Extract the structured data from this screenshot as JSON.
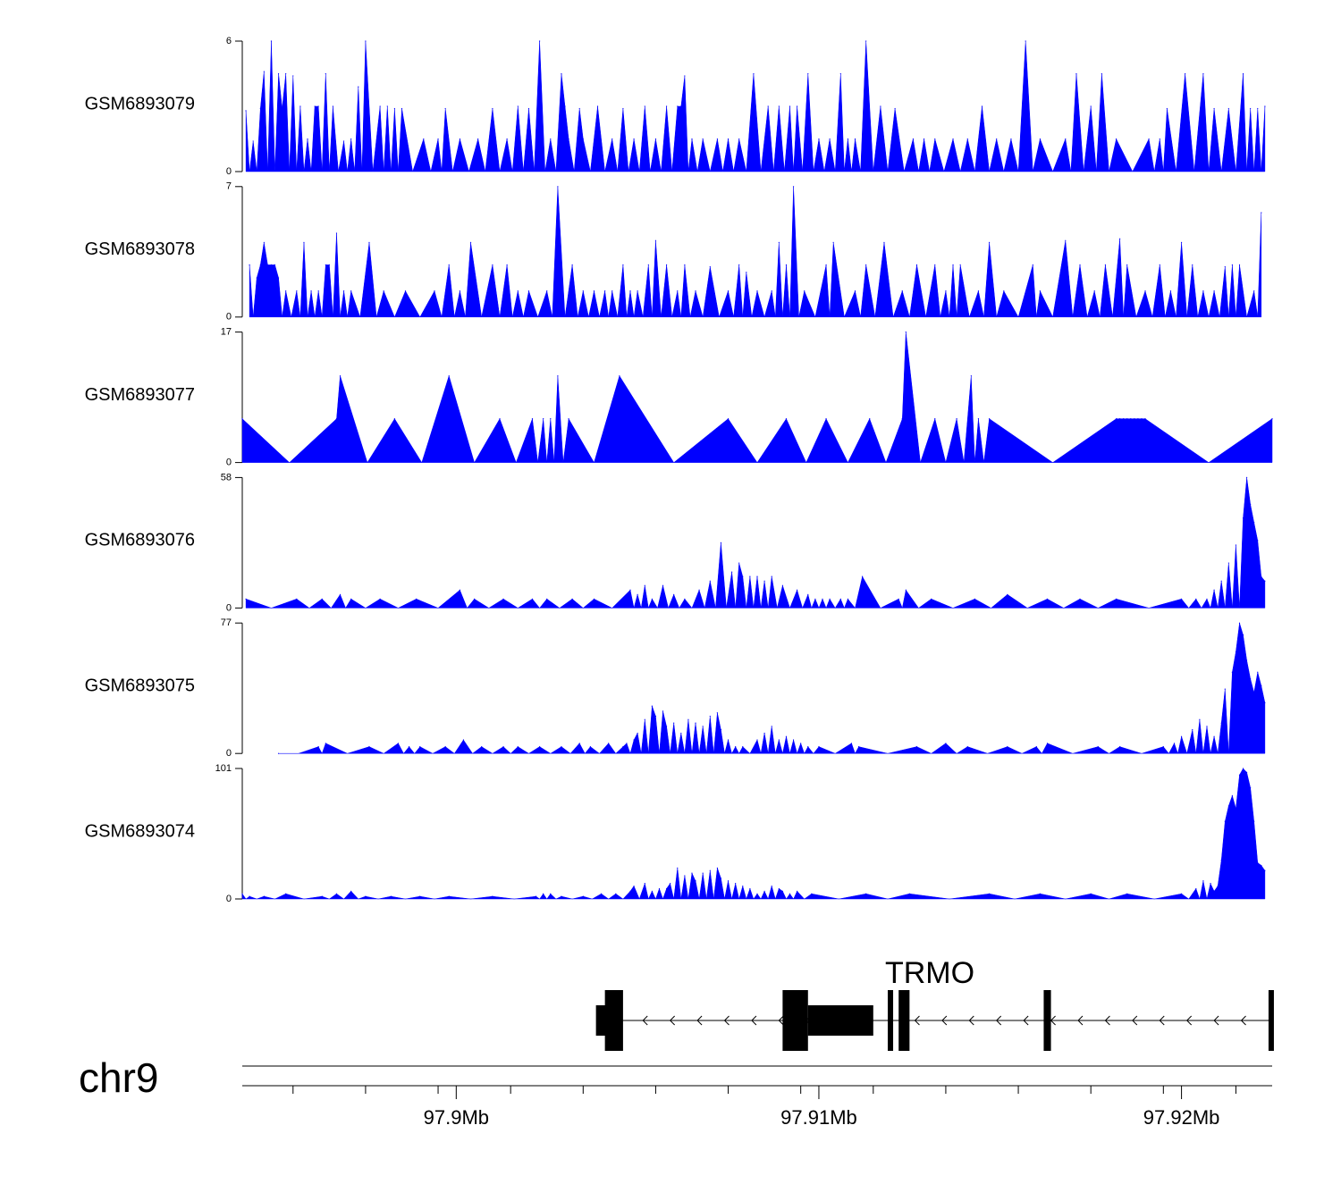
{
  "chart_data": {
    "type": "area",
    "chromosome": "chr9",
    "x_axis": {
      "unit": "Mb",
      "xlim": [
        97.8941,
        97.9225
      ],
      "major_ticks": [
        97.9,
        97.91,
        97.92
      ],
      "major_tick_labels": [
        "97.9Mb",
        "97.91Mb",
        "97.92Mb"
      ],
      "minor_ticks": [
        97.8955,
        97.8975,
        97.8995,
        97.9015,
        97.9035,
        97.9055,
        97.9075,
        97.9095,
        97.9115,
        97.9135,
        97.9155,
        97.9175,
        97.9195,
        97.9215
      ]
    },
    "series": [
      {
        "name": "GSM6893079",
        "ylim": [
          0,
          6
        ],
        "y_ticks": [
          0,
          6
        ],
        "y_tick_labels": [
          "0",
          "6"
        ],
        "color": "#0000ff",
        "x": [
          97.8942,
          97.8944,
          97.8946,
          97.8947,
          97.8949,
          97.8951,
          97.8952,
          97.8953,
          97.8955,
          97.8957,
          97.8959,
          97.8961,
          97.8962,
          97.8964,
          97.8966,
          97.8969,
          97.8971,
          97.8973,
          97.8975,
          97.8979,
          97.8981,
          97.8983,
          97.8985,
          97.8991,
          97.8995,
          97.8997,
          97.9001,
          97.9006,
          97.901,
          97.9014,
          97.9017,
          97.902,
          97.9023,
          97.9026,
          97.9029,
          97.903,
          97.9031,
          97.9034,
          97.9035,
          97.9039,
          97.9043,
          97.9046,
          97.9049,
          97.9052,
          97.9055,
          97.9058,
          97.9061,
          97.9062,
          97.9063,
          97.9065,
          97.9068,
          97.9072,
          97.9075,
          97.9078,
          97.9082,
          97.9086,
          97.9089,
          97.9092,
          97.9094,
          97.9097,
          97.91,
          97.9103,
          97.9106,
          97.9108,
          97.911,
          97.9113,
          97.9117,
          97.9121,
          97.9126,
          97.9129,
          97.9132,
          97.9137,
          97.9141,
          97.9145,
          97.9149,
          97.9153,
          97.9157,
          97.9161,
          97.9168,
          97.9171,
          97.9175,
          97.9178,
          97.9182,
          97.9191,
          97.9194,
          97.9196,
          97.9201,
          97.9206,
          97.9209,
          97.9213,
          97.9217,
          97.9219,
          97.9221,
          97.9223
        ],
        "y": [
          2.8,
          1.4,
          2.9,
          4.6,
          6.0,
          4.5,
          2.9,
          4.5,
          4.4,
          3.0,
          1.5,
          3.0,
          3.0,
          4.5,
          3.0,
          1.4,
          1.5,
          3.9,
          6.0,
          3.0,
          3.0,
          2.9,
          2.9,
          1.5,
          1.5,
          2.9,
          1.5,
          1.5,
          2.9,
          1.5,
          3.0,
          2.9,
          6.0,
          1.5,
          4.5,
          3.0,
          1.5,
          2.9,
          1.5,
          3.0,
          1.5,
          2.9,
          1.5,
          3.0,
          1.5,
          3.0,
          3.0,
          3.0,
          4.4,
          1.5,
          1.5,
          1.5,
          1.5,
          1.5,
          4.5,
          3.0,
          3.0,
          3.0,
          3.0,
          4.5,
          1.5,
          1.5,
          4.5,
          1.5,
          1.5,
          6.0,
          3.0,
          2.9,
          1.5,
          1.5,
          1.5,
          1.5,
          1.5,
          3.0,
          1.5,
          1.5,
          6.0,
          1.5,
          1.5,
          4.5,
          3.0,
          4.5,
          1.5,
          1.5,
          1.5,
          2.9,
          4.5,
          4.5,
          2.9,
          2.9,
          4.5,
          2.9,
          2.9,
          3.0
        ]
      },
      {
        "name": "GSM6893078",
        "ylim": [
          0,
          7
        ],
        "y_ticks": [
          0,
          7
        ],
        "y_tick_labels": [
          "0",
          "7"
        ],
        "color": "#0000ff",
        "x": [
          97.8943,
          97.8945,
          97.8946,
          97.8947,
          97.8948,
          97.8949,
          97.895,
          97.8951,
          97.8953,
          97.8956,
          97.8958,
          97.896,
          97.8962,
          97.8964,
          97.8965,
          97.8967,
          97.8969,
          97.8971,
          97.8976,
          97.898,
          97.8986,
          97.8994,
          97.8998,
          97.9001,
          97.9004,
          97.901,
          97.9014,
          97.9017,
          97.902,
          97.9025,
          97.9028,
          97.9032,
          97.9035,
          97.9038,
          97.9041,
          97.9043,
          97.9046,
          97.9048,
          97.905,
          97.9053,
          97.9055,
          97.9058,
          97.9061,
          97.9063,
          97.9066,
          97.907,
          97.9075,
          97.9078,
          97.908,
          97.9083,
          97.9087,
          97.9089,
          97.9091,
          97.9093,
          97.9096,
          97.9102,
          97.9104,
          97.911,
          97.9113,
          97.9118,
          97.9123,
          97.9127,
          97.9132,
          97.9135,
          97.9137,
          97.9139,
          97.9144,
          97.9147,
          97.9151,
          97.9159,
          97.9161,
          97.9168,
          97.9172,
          97.9176,
          97.9179,
          97.9183,
          97.9185,
          97.919,
          97.9194,
          97.9197,
          97.92,
          97.9203,
          97.9206,
          97.9209,
          97.9212,
          97.9214,
          97.9216,
          97.922,
          97.9222
        ],
        "y": [
          2.8,
          2.1,
          2.8,
          4.0,
          2.8,
          2.8,
          2.8,
          2.1,
          1.4,
          1.4,
          4.0,
          1.4,
          1.4,
          2.8,
          2.8,
          4.5,
          1.4,
          1.4,
          4.0,
          1.4,
          1.4,
          1.4,
          2.8,
          1.4,
          4.0,
          2.8,
          2.8,
          1.4,
          1.4,
          1.4,
          7.0,
          2.8,
          1.4,
          1.4,
          1.4,
          1.4,
          2.8,
          1.4,
          1.4,
          2.8,
          4.1,
          2.8,
          1.4,
          2.8,
          1.4,
          2.7,
          1.4,
          2.8,
          2.4,
          1.4,
          1.4,
          4.0,
          2.8,
          7.0,
          1.4,
          2.8,
          4.0,
          1.4,
          2.8,
          4.0,
          1.4,
          2.8,
          2.8,
          1.4,
          2.8,
          2.8,
          1.4,
          4.0,
          1.4,
          2.8,
          1.4,
          4.1,
          2.8,
          1.4,
          2.8,
          4.2,
          2.8,
          1.4,
          2.8,
          1.4,
          4.0,
          2.8,
          1.4,
          1.4,
          2.7,
          2.8,
          2.8,
          1.4,
          5.6
        ]
      },
      {
        "name": "GSM6893077",
        "ylim": [
          0,
          17
        ],
        "y_ticks": [
          0,
          17
        ],
        "y_tick_labels": [
          "0",
          "17"
        ],
        "color": "#0000ff",
        "x": [
          97.8941,
          97.8967,
          97.8968,
          97.8983,
          97.8998,
          97.9012,
          97.9021,
          97.9024,
          97.9026,
          97.9028,
          97.9031,
          97.9045,
          97.9075,
          97.9091,
          97.9102,
          97.9114,
          97.9123,
          97.9124,
          97.9132,
          97.9138,
          97.9142,
          97.9144,
          97.9147,
          97.9182,
          97.9183,
          97.9184,
          97.9185,
          97.9186,
          97.9187,
          97.9188,
          97.9189,
          97.919,
          97.9225
        ],
        "y": [
          5.7,
          5.7,
          11.3,
          5.7,
          11.3,
          5.7,
          5.7,
          5.7,
          5.7,
          11.3,
          5.7,
          11.3,
          5.7,
          5.7,
          5.7,
          5.7,
          5.7,
          17.0,
          5.7,
          5.7,
          11.3,
          5.7,
          5.7,
          5.7,
          5.7,
          5.7,
          5.7,
          5.7,
          5.7,
          5.7,
          5.7,
          5.7,
          5.7
        ]
      },
      {
        "name": "GSM6893076",
        "ylim": [
          0,
          58
        ],
        "y_ticks": [
          0,
          58
        ],
        "y_tick_labels": [
          "0",
          "58"
        ],
        "color": "#0000ff",
        "x": [
          97.8942,
          97.8956,
          97.8963,
          97.8968,
          97.8971,
          97.8979,
          97.8989,
          97.9001,
          97.9005,
          97.9013,
          97.9021,
          97.9025,
          97.9032,
          97.9038,
          97.9048,
          97.905,
          97.9052,
          97.9054,
          97.9057,
          97.906,
          97.9063,
          97.9067,
          97.907,
          97.9073,
          97.9076,
          97.9078,
          97.9079,
          97.9081,
          97.9083,
          97.9085,
          97.9087,
          97.909,
          97.9094,
          97.9097,
          97.9099,
          97.9101,
          97.9103,
          97.9106,
          97.9108,
          97.9112,
          97.9122,
          97.9124,
          97.9131,
          97.9143,
          97.9152,
          97.9163,
          97.9172,
          97.9182,
          97.92,
          97.9204,
          97.9207,
          97.9209,
          97.9211,
          97.9213,
          97.9215,
          97.9217,
          97.9218,
          97.9219,
          97.922,
          97.9221,
          97.9222,
          97.9223
        ],
        "y": [
          4,
          4,
          4,
          6,
          4,
          4,
          4,
          8,
          4,
          4,
          4,
          4,
          4,
          4,
          8,
          6,
          10,
          4,
          10,
          6,
          4,
          8,
          12,
          29,
          16,
          20,
          14,
          14,
          14,
          12,
          14,
          10,
          8,
          6,
          4,
          4,
          4,
          4,
          4,
          14,
          4,
          8,
          4,
          4,
          6,
          4,
          4,
          4,
          4,
          4,
          4,
          8,
          12,
          20,
          28,
          40,
          58,
          46,
          38,
          30,
          14,
          12
        ]
      },
      {
        "name": "GSM6893075",
        "ylim": [
          0,
          77
        ],
        "y_ticks": [
          0,
          77
        ],
        "y_tick_labels": [
          "0",
          "77"
        ],
        "color": "#0000ff",
        "x": [
          97.8951,
          97.8962,
          97.8964,
          97.8976,
          97.8984,
          97.8987,
          97.899,
          97.8997,
          97.9002,
          97.9007,
          97.9013,
          97.9017,
          97.9023,
          97.9029,
          97.9034,
          97.9037,
          97.9042,
          97.9046,
          97.9047,
          97.9049,
          97.905,
          97.9052,
          97.9054,
          97.9055,
          97.9057,
          97.9058,
          97.906,
          97.9062,
          97.9064,
          97.9066,
          97.9068,
          97.907,
          97.9072,
          97.9073,
          97.9075,
          97.9077,
          97.9079,
          97.9083,
          97.9085,
          97.9087,
          97.9089,
          97.9091,
          97.9093,
          97.9095,
          97.9097,
          97.91,
          97.9109,
          97.9111,
          97.9127,
          97.9135,
          97.9141,
          97.9152,
          97.916,
          97.9163,
          97.9177,
          97.9183,
          97.9195,
          97.9198,
          97.92,
          97.9203,
          97.9205,
          97.9207,
          97.9209,
          97.9211,
          97.9212,
          97.9214,
          97.9215,
          97.9216,
          97.9217,
          97.9218,
          97.9219,
          97.922,
          97.9221,
          97.9222,
          97.9223
        ],
        "y": [
          0,
          4,
          6,
          4,
          6,
          4,
          4,
          4,
          8,
          4,
          4,
          4,
          4,
          4,
          6,
          4,
          6,
          4,
          6,
          8,
          12,
          20,
          28,
          22,
          25,
          16,
          18,
          12,
          20,
          18,
          16,
          22,
          24,
          14,
          8,
          4,
          4,
          8,
          12,
          16,
          8,
          10,
          8,
          6,
          4,
          4,
          6,
          4,
          4,
          6,
          4,
          4,
          4,
          6,
          4,
          4,
          4,
          6,
          10,
          14,
          20,
          16,
          10,
          18,
          38,
          48,
          60,
          77,
          70,
          55,
          44,
          36,
          48,
          40,
          30
        ]
      },
      {
        "name": "GSM6893074",
        "ylim": [
          0,
          101
        ],
        "y_ticks": [
          0,
          101
        ],
        "y_tick_labels": [
          "0",
          "101"
        ],
        "color": "#0000ff",
        "x": [
          97.8941,
          97.8943,
          97.8947,
          97.8953,
          97.8963,
          97.8967,
          97.8971,
          97.8975,
          97.8982,
          97.899,
          97.8998,
          97.901,
          97.9022,
          97.9024,
          97.9026,
          97.9029,
          97.9035,
          97.904,
          97.9044,
          97.9048,
          97.9049,
          97.9052,
          97.9054,
          97.9056,
          97.9058,
          97.9059,
          97.9061,
          97.9063,
          97.9065,
          97.9066,
          97.9068,
          97.907,
          97.9072,
          97.9073,
          97.9075,
          97.9077,
          97.9079,
          97.9081,
          97.9083,
          97.9085,
          97.9087,
          97.9089,
          97.909,
          97.9092,
          97.9094,
          97.9098,
          97.9113,
          97.9125,
          97.9147,
          97.9161,
          97.9175,
          97.9185,
          97.92,
          97.9204,
          97.9206,
          97.9208,
          97.9209,
          97.921,
          97.9211,
          97.9212,
          97.9213,
          97.9214,
          97.9215,
          97.9216,
          97.9217,
          97.9218,
          97.9219,
          97.922,
          97.9221,
          97.9222,
          97.9223
        ],
        "y": [
          4,
          2,
          2,
          4,
          2,
          4,
          6,
          2,
          2,
          2,
          2,
          2,
          2,
          4,
          4,
          2,
          2,
          4,
          4,
          6,
          10,
          12,
          6,
          8,
          8,
          12,
          24,
          18,
          20,
          14,
          20,
          22,
          24,
          16,
          14,
          12,
          10,
          8,
          4,
          6,
          10,
          8,
          6,
          4,
          6,
          4,
          4,
          4,
          4,
          4,
          4,
          4,
          4,
          8,
          14,
          12,
          6,
          10,
          30,
          60,
          72,
          80,
          70,
          96,
          101,
          98,
          86,
          60,
          28,
          26,
          22
        ]
      }
    ],
    "gene": {
      "name": "TRMO",
      "strand": "-",
      "start": 97.9041,
      "end": 97.9224,
      "exons": [
        [
          97.9041,
          97.9046
        ],
        [
          97.909,
          97.9097
        ],
        [
          97.9097,
          97.9115
        ],
        [
          97.9119,
          97.912
        ],
        [
          97.9122,
          97.9125
        ],
        [
          97.9162,
          97.9164
        ],
        [
          97.9224,
          97.9225
        ]
      ],
      "arrow_direction": "left"
    }
  }
}
